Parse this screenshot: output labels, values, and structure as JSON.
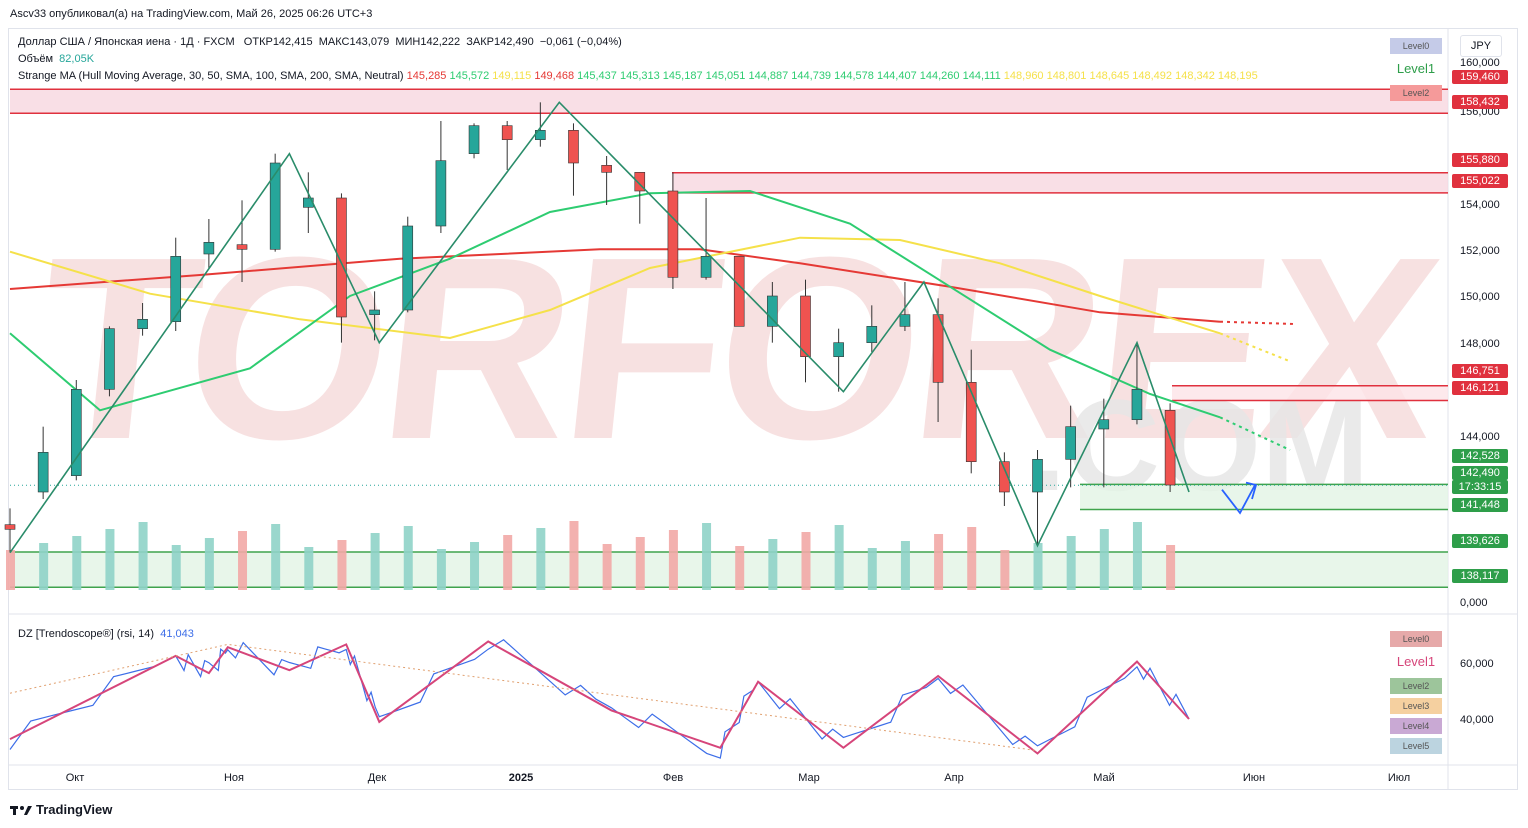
{
  "header": {
    "published": "Ascv33 опубликовал(а) на TradingView.com, Май 26, 2025 06:26 UTC+3",
    "symbol_line": "Доллар США / Японская иена · 1Д · FXCM",
    "ohlc": {
      "open_label": "ОТКР142,415",
      "high_label": "МАКС143,079",
      "low_label": "МИН142,222",
      "close_label": "ЗАКР142,490",
      "change_label": "−0,061 (−0,04%)"
    },
    "volume_label": "Объём",
    "volume_value": "82,05K",
    "ma_indicator": "Strange MA (Hull Moving Average, 30, 50, SMA, 100, SMA, 200, SMA, Neutral)",
    "ma_values": [
      "145,285",
      "145,572",
      "149,115",
      "149,468",
      "145,437",
      "145,313",
      "145,187",
      "145,051",
      "144,887",
      "144,739",
      "144,578",
      "144,407",
      "144,260",
      "144,111",
      "148,960",
      "148,801",
      "148,645",
      "148,492",
      "148,342",
      "148,195"
    ],
    "currency": "JPY"
  },
  "rsi_panel": {
    "indicator": "DZ [Trendoscope®] (rsi, 14)",
    "value": "41,043",
    "ticks": [
      "60,000",
      "40,000"
    ],
    "levels": [
      "Level0",
      "Level1",
      "Level2",
      "Level3",
      "Level4",
      "Level5"
    ]
  },
  "main_levels": [
    "Level0",
    "Level1",
    "Level2"
  ],
  "price_axis": {
    "ticks": [
      "160,000",
      "156,000",
      "154,000",
      "152,000",
      "150,000",
      "148,000",
      "144,000",
      "0,000"
    ]
  },
  "price_labels": [
    {
      "value": "159,460",
      "color": "#e0313e"
    },
    {
      "value": "158,432",
      "color": "#e0313e"
    },
    {
      "value": "155,880",
      "color": "#e0313e"
    },
    {
      "value": "155,022",
      "color": "#e0313e"
    },
    {
      "value": "146,751",
      "color": "#e0313e"
    },
    {
      "value": "146,121",
      "color": "#e0313e"
    },
    {
      "value": "142,528",
      "color": "#2e9e4a"
    },
    {
      "value": "142,490",
      "color": "#2e9e4a"
    },
    {
      "value": "17:33:15",
      "color": "#2e9e4a"
    },
    {
      "value": "141,448",
      "color": "#2e9e4a"
    },
    {
      "value": "139,626",
      "color": "#2e9e4a"
    },
    {
      "value": "138,117",
      "color": "#2e9e4a"
    }
  ],
  "time_axis": [
    "Окт",
    "Ноя",
    "Дек",
    "2025",
    "Фев",
    "Мар",
    "Апр",
    "Май",
    "Июн",
    "Июл"
  ],
  "watermark": {
    "main": "TORFOREX",
    "suffix": ".COM"
  },
  "footer": {
    "brand": "TradingView"
  },
  "colors": {
    "up": "#26a69a",
    "down": "#ef5350",
    "hull": "#1f5e4a",
    "ma50": "#2ecc71",
    "ma100": "#f5e14a",
    "ma200": "#e53935",
    "rsi": "#3d6ee8",
    "zigzag": "#d6457a"
  },
  "chart_data": {
    "type": "candlestick",
    "symbol": "USDJPY",
    "timeframe": "1D",
    "ylim": [
      138,
      160.5
    ],
    "x_range": [
      "2024-09-16",
      "2025-07-15"
    ],
    "candles": [
      {
        "d": "2024-09-16",
        "o": 140.8,
        "h": 141.5,
        "l": 139.6,
        "c": 140.6
      },
      {
        "d": "2024-09-23",
        "o": 142.2,
        "h": 145.0,
        "l": 141.9,
        "c": 143.9
      },
      {
        "d": "2024-09-30",
        "o": 142.9,
        "h": 147.0,
        "l": 142.7,
        "c": 146.6
      },
      {
        "d": "2024-10-07",
        "o": 146.6,
        "h": 149.3,
        "l": 146.3,
        "c": 149.2
      },
      {
        "d": "2024-10-14",
        "o": 149.2,
        "h": 150.3,
        "l": 148.9,
        "c": 149.6
      },
      {
        "d": "2024-10-21",
        "o": 149.5,
        "h": 153.1,
        "l": 149.1,
        "c": 152.3
      },
      {
        "d": "2024-10-28",
        "o": 152.4,
        "h": 153.9,
        "l": 151.8,
        "c": 152.9
      },
      {
        "d": "2024-11-04",
        "o": 152.8,
        "h": 154.7,
        "l": 151.2,
        "c": 152.6
      },
      {
        "d": "2024-11-11",
        "o": 152.6,
        "h": 156.7,
        "l": 152.5,
        "c": 156.3
      },
      {
        "d": "2024-11-18",
        "o": 154.4,
        "h": 155.9,
        "l": 153.3,
        "c": 154.8
      },
      {
        "d": "2024-11-25",
        "o": 154.8,
        "h": 155.0,
        "l": 148.6,
        "c": 149.7
      },
      {
        "d": "2024-12-02",
        "o": 149.8,
        "h": 150.8,
        "l": 148.7,
        "c": 150.0
      },
      {
        "d": "2024-12-09",
        "o": 150.0,
        "h": 154.0,
        "l": 149.9,
        "c": 153.6
      },
      {
        "d": "2024-12-16",
        "o": 153.6,
        "h": 158.1,
        "l": 153.3,
        "c": 156.4
      },
      {
        "d": "2024-12-23",
        "o": 156.7,
        "h": 158.0,
        "l": 156.5,
        "c": 157.9
      },
      {
        "d": "2024-12-30",
        "o": 157.9,
        "h": 158.1,
        "l": 156.0,
        "c": 157.3
      },
      {
        "d": "2025-01-06",
        "o": 157.3,
        "h": 158.9,
        "l": 157.0,
        "c": 157.7
      },
      {
        "d": "2025-01-13",
        "o": 157.7,
        "h": 158.0,
        "l": 154.9,
        "c": 156.3
      },
      {
        "d": "2025-01-20",
        "o": 156.2,
        "h": 156.6,
        "l": 154.5,
        "c": 155.9
      },
      {
        "d": "2025-01-27",
        "o": 155.9,
        "h": 155.9,
        "l": 153.7,
        "c": 155.1
      },
      {
        "d": "2025-02-03",
        "o": 155.1,
        "h": 155.9,
        "l": 150.9,
        "c": 151.4
      },
      {
        "d": "2025-02-10",
        "o": 151.4,
        "h": 154.8,
        "l": 151.3,
        "c": 152.3
      },
      {
        "d": "2025-02-17",
        "o": 152.3,
        "h": 152.3,
        "l": 149.3,
        "c": 149.3
      },
      {
        "d": "2025-02-24",
        "o": 149.3,
        "h": 151.2,
        "l": 148.6,
        "c": 150.6
      },
      {
        "d": "2025-03-03",
        "o": 150.6,
        "h": 151.3,
        "l": 146.9,
        "c": 148.0
      },
      {
        "d": "2025-03-10",
        "o": 148.0,
        "h": 149.2,
        "l": 146.5,
        "c": 148.6
      },
      {
        "d": "2025-03-17",
        "o": 148.6,
        "h": 150.2,
        "l": 148.2,
        "c": 149.3
      },
      {
        "d": "2025-03-24",
        "o": 149.3,
        "h": 151.2,
        "l": 149.1,
        "c": 149.8
      },
      {
        "d": "2025-03-31",
        "o": 149.8,
        "h": 150.5,
        "l": 145.2,
        "c": 146.9
      },
      {
        "d": "2025-04-07",
        "o": 146.9,
        "h": 148.3,
        "l": 143.0,
        "c": 143.5
      },
      {
        "d": "2025-04-14",
        "o": 143.5,
        "h": 143.9,
        "l": 141.6,
        "c": 142.2
      },
      {
        "d": "2025-04-21",
        "o": 142.2,
        "h": 144.0,
        "l": 139.9,
        "c": 143.6
      },
      {
        "d": "2025-04-28",
        "o": 143.6,
        "h": 145.9,
        "l": 142.4,
        "c": 145.0
      },
      {
        "d": "2025-05-05",
        "o": 144.9,
        "h": 146.2,
        "l": 142.4,
        "c": 145.3
      },
      {
        "d": "2025-05-12",
        "o": 145.3,
        "h": 148.6,
        "l": 145.1,
        "c": 146.6
      },
      {
        "d": "2025-05-19",
        "o": 145.7,
        "h": 146.0,
        "l": 142.2,
        "c": 142.5
      }
    ],
    "ma_lines": {
      "ma50_last": 145.4,
      "ma100_last": 149.0,
      "ma200_last": 149.5
    },
    "horizontal_levels": [
      159.46,
      158.432,
      155.88,
      155.022,
      146.751,
      146.121,
      142.528,
      141.448,
      139.626,
      138.117
    ],
    "current_price": 142.49,
    "rsi": {
      "ylim": [
        25,
        72
      ],
      "last": 41.043,
      "pivots": [
        {
          "d": "2024-09-16",
          "v": 34
        },
        {
          "d": "2024-10-21",
          "v": 63
        },
        {
          "d": "2024-10-28",
          "v": 57
        },
        {
          "d": "2024-11-01",
          "v": 66
        },
        {
          "d": "2024-11-14",
          "v": 58
        },
        {
          "d": "2024-11-26",
          "v": 67
        },
        {
          "d": "2024-12-03",
          "v": 40
        },
        {
          "d": "2024-12-26",
          "v": 68
        },
        {
          "d": "2025-01-21",
          "v": 44
        },
        {
          "d": "2025-02-13",
          "v": 31
        },
        {
          "d": "2025-02-21",
          "v": 54
        },
        {
          "d": "2025-03-11",
          "v": 31
        },
        {
          "d": "2025-03-31",
          "v": 56
        },
        {
          "d": "2025-04-21",
          "v": 29
        },
        {
          "d": "2025-05-12",
          "v": 61
        },
        {
          "d": "2025-05-23",
          "v": 41
        }
      ]
    }
  }
}
